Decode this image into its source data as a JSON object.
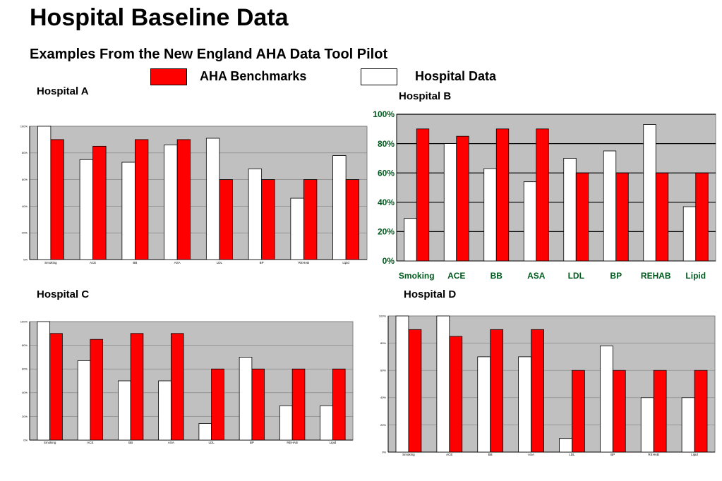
{
  "title": "Hospital Baseline Data",
  "subtitle": "Examples  From the New England AHA Data Tool Pilot",
  "legend": [
    {
      "label": "AHA Benchmarks",
      "color": "#ff0000"
    },
    {
      "label": "Hospital Data",
      "color": "#ffffff"
    }
  ],
  "colors": {
    "benchmark": "#ff0000",
    "hospital": "#ffffff",
    "plot_bg": "#c0c0c0",
    "axis_text_b": "#005a1e"
  },
  "chart_data": [
    {
      "type": "bar",
      "label": "Hospital A",
      "categories": [
        "Smoking",
        "ACE",
        "BB",
        "ASA",
        "LDL",
        "BP",
        "REHAB",
        "Lipid"
      ],
      "series": [
        {
          "name": "Hospital Data",
          "values": [
            100,
            75,
            73,
            86,
            91,
            68,
            46,
            78
          ]
        },
        {
          "name": "AHA Benchmarks",
          "values": [
            90,
            85,
            90,
            90,
            60,
            60,
            60,
            60
          ]
        }
      ],
      "ylim": [
        0,
        100
      ],
      "yticks": [
        "0%",
        "20%",
        "40%",
        "60%",
        "80%",
        "100%"
      ],
      "grid": true
    },
    {
      "type": "bar",
      "label": "Hospital B",
      "categories": [
        "Smoking",
        "ACE",
        "BB",
        "ASA",
        "LDL",
        "BP",
        "REHAB",
        "Lipid"
      ],
      "series": [
        {
          "name": "Hospital Data",
          "values": [
            29,
            80,
            63,
            54,
            70,
            75,
            93,
            37
          ]
        },
        {
          "name": "AHA Benchmarks",
          "values": [
            90,
            85,
            90,
            90,
            60,
            60,
            60,
            60
          ]
        }
      ],
      "ylim": [
        0,
        100
      ],
      "yticks": [
        "0%",
        "20%",
        "40%",
        "60%",
        "80%",
        "100%"
      ],
      "grid": true
    },
    {
      "type": "bar",
      "label": "Hospital C",
      "categories": [
        "Smoking",
        "ACE",
        "BB",
        "ASA",
        "LDL",
        "BP",
        "REHAB",
        "Lipid"
      ],
      "series": [
        {
          "name": "Hospital Data",
          "values": [
            100,
            67,
            50,
            50,
            14,
            70,
            29,
            29
          ]
        },
        {
          "name": "AHA Benchmarks",
          "values": [
            90,
            85,
            90,
            90,
            60,
            60,
            60,
            60
          ]
        }
      ],
      "ylim": [
        0,
        100
      ],
      "yticks": [
        "0%",
        "20%",
        "40%",
        "60%",
        "80%",
        "100%"
      ],
      "grid": true
    },
    {
      "type": "bar",
      "label": "Hospital D",
      "categories": [
        "Smoking",
        "ACE",
        "BB",
        "ASA",
        "LDL",
        "BP",
        "REHAB",
        "Lipid"
      ],
      "series": [
        {
          "name": "Hospital Data",
          "values": [
            100,
            100,
            70,
            70,
            10,
            78,
            40,
            40
          ]
        },
        {
          "name": "AHA Benchmarks",
          "values": [
            90,
            85,
            90,
            90,
            60,
            60,
            60,
            60
          ]
        }
      ],
      "ylim": [
        0,
        100
      ],
      "yticks": [
        "0%",
        "20%",
        "40%",
        "60%",
        "80%",
        "100%"
      ],
      "grid": true
    }
  ]
}
